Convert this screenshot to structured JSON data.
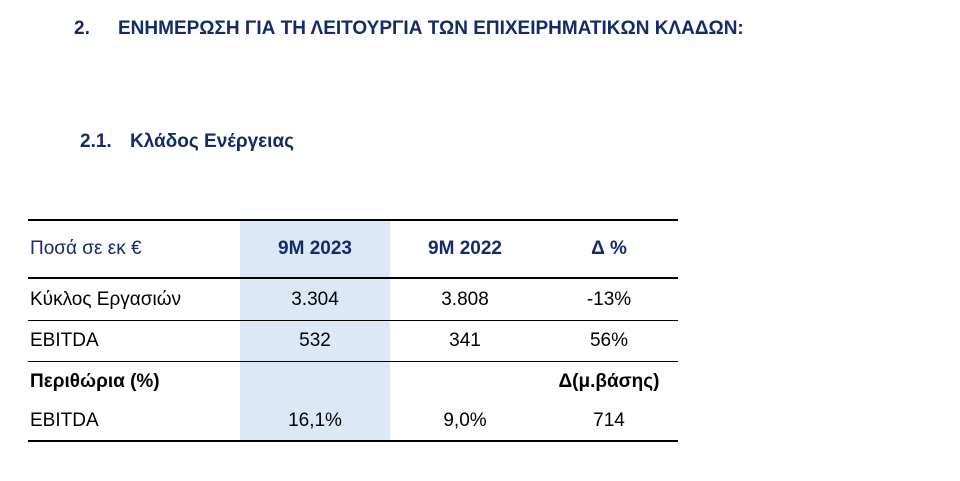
{
  "section": {
    "number": "2.",
    "title": "ΕΝΗΜΕΡΩΣΗ ΓΙΑ ΤΗ ΛΕΙΤΟΥΡΓΙΑ ΤΩΝ ΕΠΙΧΕΙΡΗΜΑΤΙΚΩΝ ΚΛΑΔΩΝ:"
  },
  "subsection": {
    "number": "2.1.",
    "title": "Κλάδος Ενέργειας"
  },
  "table": {
    "header": {
      "label": "Ποσά σε εκ €",
      "col1": "9M 2023",
      "col2": "9M 2022",
      "col3": "Δ %"
    },
    "rows": [
      {
        "label": "Κύκλος Εργασιών",
        "v1": "3.304",
        "v2": "3.808",
        "v3": "-13%"
      },
      {
        "label": "EBITDA",
        "v1": "532",
        "v2": "341",
        "v3": "56%"
      }
    ],
    "margins_header": {
      "label": "Περιθώρια (%)",
      "col3": "Δ(μ.βάσης)"
    },
    "margins_rows": [
      {
        "label": "EBITDA",
        "v1": "16,1%",
        "v2": "9,0%",
        "v3": "714"
      }
    ],
    "colors": {
      "heading": "#132a6b",
      "highlight_column": "#dde8f6"
    }
  }
}
